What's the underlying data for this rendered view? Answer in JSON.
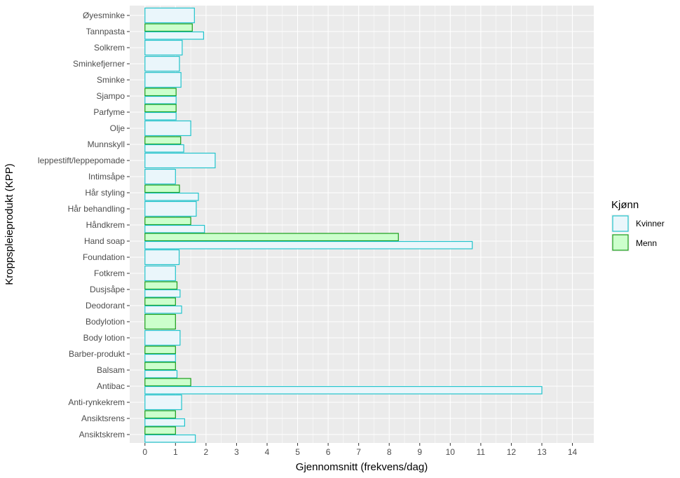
{
  "chart_data": {
    "type": "bar",
    "orientation": "horizontal",
    "xlabel": "Gjennomsnitt (frekvens/dag)",
    "ylabel": "Kroppspleieprodukt (KPP)",
    "xlim": [
      0,
      14
    ],
    "xticks": [
      "0",
      "1",
      "2",
      "3",
      "4",
      "5",
      "6",
      "7",
      "8",
      "9",
      "10",
      "11",
      "12",
      "13",
      "14"
    ],
    "grid": true,
    "legend": {
      "title": "Kjønn",
      "position": "right"
    },
    "categories": [
      "Øyesminke",
      "Tannpasta",
      "Solkrem",
      "Sminkefjerner",
      "Sminke",
      "Sjampo",
      "Parfyme",
      "Olje",
      "Munnskyll",
      "leppestift/leppepomade",
      "Intimsåpe",
      "Hår styling",
      "Hår behandling",
      "Håndkrem",
      "Hand soap",
      "Foundation",
      "Fotkrem",
      "Dusjsåpe",
      "Deodorant",
      "Bodylotion",
      "Body lotion",
      "Barber-produkt",
      "Balsam",
      "Antibac",
      "Anti-rynkekrem",
      "Ansiktsrens",
      "Ansiktskrem"
    ],
    "series": [
      {
        "name": "Kvinner",
        "fill": "#eaf6fb",
        "stroke": "#22c4cc",
        "values": [
          1.62,
          1.92,
          1.22,
          1.13,
          1.18,
          1.02,
          1.02,
          1.5,
          1.27,
          2.3,
          1.0,
          1.75,
          1.68,
          1.95,
          10.72,
          1.12,
          1.0,
          1.15,
          1.2,
          null,
          1.15,
          1.0,
          1.05,
          13.0,
          1.2,
          1.3,
          1.65
        ]
      },
      {
        "name": "Menn",
        "fill": "#ccffcc",
        "stroke": "#1a9e1a",
        "values": [
          null,
          1.55,
          null,
          null,
          null,
          1.02,
          1.02,
          null,
          1.17,
          null,
          null,
          1.13,
          null,
          1.5,
          8.3,
          null,
          null,
          1.05,
          1.0,
          1.0,
          null,
          1.0,
          1.0,
          1.5,
          null,
          1.0,
          1.0
        ]
      }
    ]
  }
}
